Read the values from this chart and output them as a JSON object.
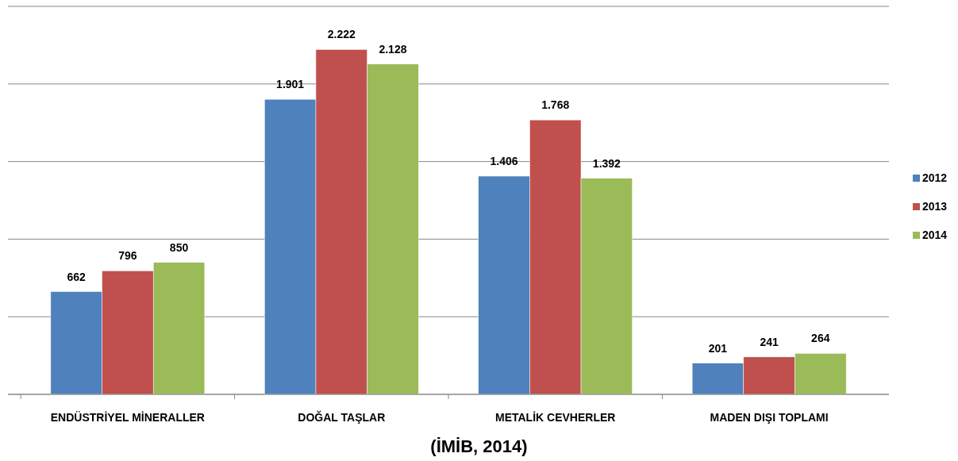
{
  "chart_data": {
    "type": "bar",
    "categories": [
      "ENDÜSTRİYEL MİNERALLER",
      "DOĞAL TAŞLAR",
      "METALİK CEVHERLER",
      "MADEN DIŞI TOPLAMI"
    ],
    "series": [
      {
        "name": "2012",
        "color": "#4f81bd",
        "values": [
          662,
          1901,
          1406,
          201
        ],
        "value_labels": [
          "662",
          "1.901",
          "1.406",
          "201"
        ]
      },
      {
        "name": "2013",
        "color": "#c0504d",
        "values": [
          796,
          2222,
          1768,
          241
        ],
        "value_labels": [
          "796",
          "2.222",
          "1.768",
          "241"
        ]
      },
      {
        "name": "2014",
        "color": "#9bbb59",
        "values": [
          850,
          2128,
          1392,
          264
        ],
        "value_labels": [
          "850",
          "2.128",
          "1.392",
          "264"
        ]
      }
    ],
    "ylim": [
      0,
      2500
    ],
    "yticks": [
      {
        "value": 0,
        "label": null
      },
      {
        "value": 500,
        "label": null
      },
      {
        "value": 1000,
        "label": null
      },
      {
        "value": 1500,
        "label": null
      },
      {
        "value": 2000,
        "label": null
      },
      {
        "value": 2500,
        "label": null
      }
    ],
    "tick_labels": "x",
    "grid": "y",
    "legend": "right",
    "annotations": [
      "(İMİB, 2014)"
    ]
  }
}
